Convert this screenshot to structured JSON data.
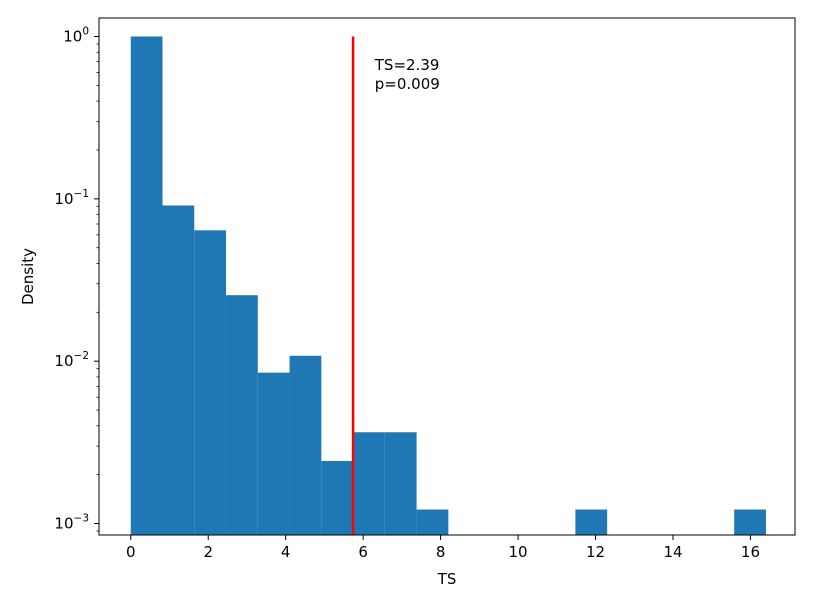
{
  "chart_data": {
    "type": "bar",
    "subtype": "histogram",
    "xlabel": "TS",
    "ylabel": "Density",
    "yscale": "log",
    "xlim": [
      -0.82,
      17.15
    ],
    "ylim": [
      0.00085,
      1.3
    ],
    "grid": false,
    "legend": "none",
    "bar_color": "#1f77b4",
    "x_ticks": [
      0,
      2,
      4,
      6,
      8,
      10,
      12,
      14,
      16
    ],
    "y_ticks": [
      {
        "value": 1,
        "label_base": "10",
        "label_exp": "0"
      },
      {
        "value": 0.1,
        "label_base": "10",
        "label_exp": "−1"
      },
      {
        "value": 0.01,
        "label_base": "10",
        "label_exp": "−2"
      },
      {
        "value": 0.001,
        "label_base": "10",
        "label_exp": "−3"
      }
    ],
    "bins": [
      {
        "x0": 0.0,
        "x1": 0.82,
        "value": 1.0
      },
      {
        "x0": 0.82,
        "x1": 1.64,
        "value": 0.091
      },
      {
        "x0": 1.64,
        "x1": 2.46,
        "value": 0.064
      },
      {
        "x0": 2.46,
        "x1": 3.28,
        "value": 0.0255
      },
      {
        "x0": 3.28,
        "x1": 4.1,
        "value": 0.0085
      },
      {
        "x0": 4.1,
        "x1": 4.92,
        "value": 0.0108
      },
      {
        "x0": 4.92,
        "x1": 5.74,
        "value": 0.00243
      },
      {
        "x0": 5.74,
        "x1": 6.56,
        "value": 0.00365
      },
      {
        "x0": 6.56,
        "x1": 7.38,
        "value": 0.00365
      },
      {
        "x0": 7.38,
        "x1": 8.2,
        "value": 0.00122
      },
      {
        "x0": 11.48,
        "x1": 12.3,
        "value": 0.00122
      },
      {
        "x0": 15.58,
        "x1": 16.4,
        "value": 0.00122
      }
    ],
    "threshold_line": {
      "x": 5.74,
      "y_top": 1.0,
      "color": "#ff0000"
    },
    "annotation": {
      "lines": [
        "TS=2.39",
        "p=0.009"
      ],
      "x": 6.3,
      "y": 0.62
    }
  }
}
